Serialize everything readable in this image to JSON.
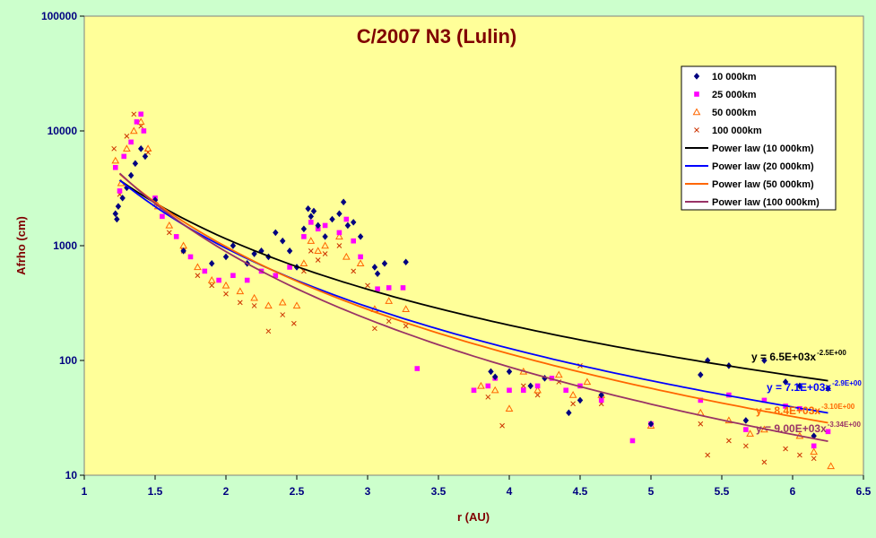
{
  "chart_data": {
    "type": "scatter",
    "title": "C/2007 N3 (Lulin)",
    "xlabel": "r (AU)",
    "ylabel": "Afrho (cm)",
    "xlim": [
      1,
      6.5
    ],
    "ylim": [
      10,
      100000
    ],
    "yscale": "log",
    "xticks": [
      "1",
      "1.5",
      "2",
      "2.5",
      "3",
      "3.5",
      "4",
      "4.5",
      "5",
      "5.5",
      "6",
      "6.5"
    ],
    "yticks": [
      "10",
      "100",
      "1000",
      "10000",
      "100000"
    ],
    "grid": false,
    "legend_position": "top-right",
    "colors": {
      "background": "#ccffcc",
      "plot_area": "#ffff99",
      "axis_text": "#000080",
      "title": "#800000"
    },
    "series": [
      {
        "name": "10 000km",
        "marker": "diamond",
        "color": "#000080",
        "points": [
          [
            1.22,
            1900
          ],
          [
            1.23,
            1700
          ],
          [
            1.24,
            2200
          ],
          [
            1.27,
            2600
          ],
          [
            1.3,
            3200
          ],
          [
            1.33,
            4100
          ],
          [
            1.36,
            5200
          ],
          [
            1.4,
            7000
          ],
          [
            1.43,
            6000
          ],
          [
            1.5,
            2500
          ],
          [
            1.7,
            900
          ],
          [
            1.9,
            700
          ],
          [
            2.0,
            800
          ],
          [
            2.05,
            1000
          ],
          [
            2.15,
            700
          ],
          [
            2.2,
            850
          ],
          [
            2.25,
            900
          ],
          [
            2.3,
            800
          ],
          [
            2.35,
            1300
          ],
          [
            2.4,
            1100
          ],
          [
            2.45,
            900
          ],
          [
            2.5,
            650
          ],
          [
            2.55,
            1400
          ],
          [
            2.58,
            2100
          ],
          [
            2.6,
            1800
          ],
          [
            2.62,
            2000
          ],
          [
            2.65,
            1500
          ],
          [
            2.7,
            1200
          ],
          [
            2.75,
            1700
          ],
          [
            2.8,
            1900
          ],
          [
            2.83,
            2400
          ],
          [
            2.86,
            1500
          ],
          [
            2.9,
            1600
          ],
          [
            2.95,
            1200
          ],
          [
            3.05,
            650
          ],
          [
            3.07,
            570
          ],
          [
            3.12,
            700
          ],
          [
            3.27,
            720
          ],
          [
            3.87,
            80
          ],
          [
            3.9,
            72
          ],
          [
            4.0,
            80
          ],
          [
            4.15,
            60
          ],
          [
            4.25,
            70
          ],
          [
            4.42,
            35
          ],
          [
            4.5,
            45
          ],
          [
            4.65,
            50
          ],
          [
            5.0,
            28
          ],
          [
            5.35,
            75
          ],
          [
            5.4,
            100
          ],
          [
            5.55,
            90
          ],
          [
            5.67,
            30
          ],
          [
            5.8,
            100
          ],
          [
            5.95,
            65
          ],
          [
            6.05,
            60
          ],
          [
            6.15,
            22
          ],
          [
            6.25,
            57
          ]
        ]
      },
      {
        "name": "25 000km",
        "marker": "square",
        "color": "#ff00ff",
        "points": [
          [
            1.22,
            4800
          ],
          [
            1.25,
            3000
          ],
          [
            1.28,
            6000
          ],
          [
            1.33,
            8000
          ],
          [
            1.37,
            12000
          ],
          [
            1.4,
            14000
          ],
          [
            1.42,
            10000
          ],
          [
            1.5,
            2600
          ],
          [
            1.55,
            1800
          ],
          [
            1.65,
            1200
          ],
          [
            1.75,
            800
          ],
          [
            1.85,
            600
          ],
          [
            1.95,
            500
          ],
          [
            2.05,
            550
          ],
          [
            2.15,
            500
          ],
          [
            2.25,
            600
          ],
          [
            2.35,
            550
          ],
          [
            2.45,
            650
          ],
          [
            2.55,
            1200
          ],
          [
            2.6,
            1600
          ],
          [
            2.65,
            1400
          ],
          [
            2.7,
            1500
          ],
          [
            2.8,
            1300
          ],
          [
            2.85,
            1700
          ],
          [
            2.9,
            1100
          ],
          [
            2.95,
            800
          ],
          [
            3.07,
            420
          ],
          [
            3.15,
            430
          ],
          [
            3.25,
            430
          ],
          [
            3.35,
            85
          ],
          [
            3.75,
            55
          ],
          [
            3.85,
            60
          ],
          [
            3.9,
            70
          ],
          [
            4.0,
            55
          ],
          [
            4.1,
            55
          ],
          [
            4.2,
            60
          ],
          [
            4.3,
            70
          ],
          [
            4.4,
            55
          ],
          [
            4.5,
            60
          ],
          [
            4.65,
            45
          ],
          [
            4.87,
            20
          ],
          [
            5.0,
            28
          ],
          [
            5.35,
            45
          ],
          [
            5.55,
            50
          ],
          [
            5.67,
            25
          ],
          [
            5.8,
            45
          ],
          [
            5.95,
            40
          ],
          [
            6.05,
            38
          ],
          [
            6.15,
            18
          ],
          [
            6.25,
            24
          ]
        ]
      },
      {
        "name": "50 000km",
        "marker": "triangle",
        "color": "#ff6600",
        "points": [
          [
            1.22,
            5500
          ],
          [
            1.26,
            3500
          ],
          [
            1.3,
            7000
          ],
          [
            1.35,
            10000
          ],
          [
            1.4,
            12000
          ],
          [
            1.45,
            7000
          ],
          [
            1.52,
            2200
          ],
          [
            1.6,
            1500
          ],
          [
            1.7,
            1000
          ],
          [
            1.8,
            650
          ],
          [
            1.9,
            500
          ],
          [
            2.0,
            450
          ],
          [
            2.1,
            400
          ],
          [
            2.2,
            350
          ],
          [
            2.3,
            300
          ],
          [
            2.4,
            320
          ],
          [
            2.5,
            300
          ],
          [
            2.55,
            700
          ],
          [
            2.6,
            1100
          ],
          [
            2.65,
            900
          ],
          [
            2.7,
            1000
          ],
          [
            2.8,
            1200
          ],
          [
            2.85,
            800
          ],
          [
            2.95,
            700
          ],
          [
            3.05,
            280
          ],
          [
            3.15,
            330
          ],
          [
            3.27,
            280
          ],
          [
            3.8,
            60
          ],
          [
            3.9,
            55
          ],
          [
            4.0,
            38
          ],
          [
            4.1,
            80
          ],
          [
            4.2,
            55
          ],
          [
            4.35,
            75
          ],
          [
            4.45,
            50
          ],
          [
            4.55,
            65
          ],
          [
            4.65,
            50
          ],
          [
            5.0,
            27
          ],
          [
            5.35,
            35
          ],
          [
            5.55,
            30
          ],
          [
            5.7,
            23
          ],
          [
            5.8,
            25
          ],
          [
            6.05,
            22
          ],
          [
            6.15,
            16
          ],
          [
            6.27,
            12
          ]
        ]
      },
      {
        "name": "100 000km",
        "marker": "x",
        "color": "#cc3300",
        "points": [
          [
            1.21,
            7000
          ],
          [
            1.25,
            2800
          ],
          [
            1.3,
            9000
          ],
          [
            1.35,
            14000
          ],
          [
            1.4,
            11000
          ],
          [
            1.45,
            6500
          ],
          [
            1.5,
            2300
          ],
          [
            1.6,
            1300
          ],
          [
            1.7,
            900
          ],
          [
            1.8,
            550
          ],
          [
            1.9,
            450
          ],
          [
            2.0,
            380
          ],
          [
            2.1,
            320
          ],
          [
            2.2,
            300
          ],
          [
            2.3,
            180
          ],
          [
            2.4,
            250
          ],
          [
            2.48,
            210
          ],
          [
            2.55,
            600
          ],
          [
            2.6,
            900
          ],
          [
            2.65,
            750
          ],
          [
            2.7,
            850
          ],
          [
            2.8,
            1000
          ],
          [
            2.9,
            600
          ],
          [
            3.0,
            450
          ],
          [
            3.05,
            190
          ],
          [
            3.15,
            220
          ],
          [
            3.27,
            200
          ],
          [
            3.75,
            55
          ],
          [
            3.85,
            48
          ],
          [
            3.95,
            27
          ],
          [
            4.1,
            60
          ],
          [
            4.2,
            50
          ],
          [
            4.35,
            65
          ],
          [
            4.45,
            42
          ],
          [
            4.5,
            90
          ],
          [
            4.65,
            42
          ],
          [
            5.35,
            28
          ],
          [
            5.4,
            15
          ],
          [
            5.55,
            20
          ],
          [
            5.67,
            18
          ],
          [
            5.8,
            13
          ],
          [
            5.95,
            17
          ],
          [
            6.05,
            15
          ],
          [
            6.15,
            14
          ]
        ]
      }
    ],
    "fits": [
      {
        "name": "Power law (10 000km)",
        "color": "#000000",
        "a": 6500,
        "b": -2.5,
        "x_range": [
          1.25,
          6.25
        ],
        "equation": "y = 6.5E+03x",
        "exponent": "-2.5E+00"
      },
      {
        "name": "Power law (20 000km)",
        "color": "#0000ff",
        "a": 7100,
        "b": -2.9,
        "x_range": [
          1.25,
          6.25
        ],
        "equation": "y = 7.1E+03x",
        "exponent": "-2.9E+00"
      },
      {
        "name": "Power law (50 000km)",
        "color": "#ff6600",
        "a": 8400,
        "b": -3.1,
        "x_range": [
          1.25,
          6.25
        ],
        "equation": "y = 8.4E+03x",
        "exponent": "-3.10E+00"
      },
      {
        "name": "Power law (100 000km)",
        "color": "#993366",
        "a": 9000,
        "b": -3.34,
        "x_range": [
          1.25,
          6.25
        ],
        "equation": "y = 9.00E+03x",
        "exponent": "-3.34E+00"
      }
    ]
  }
}
